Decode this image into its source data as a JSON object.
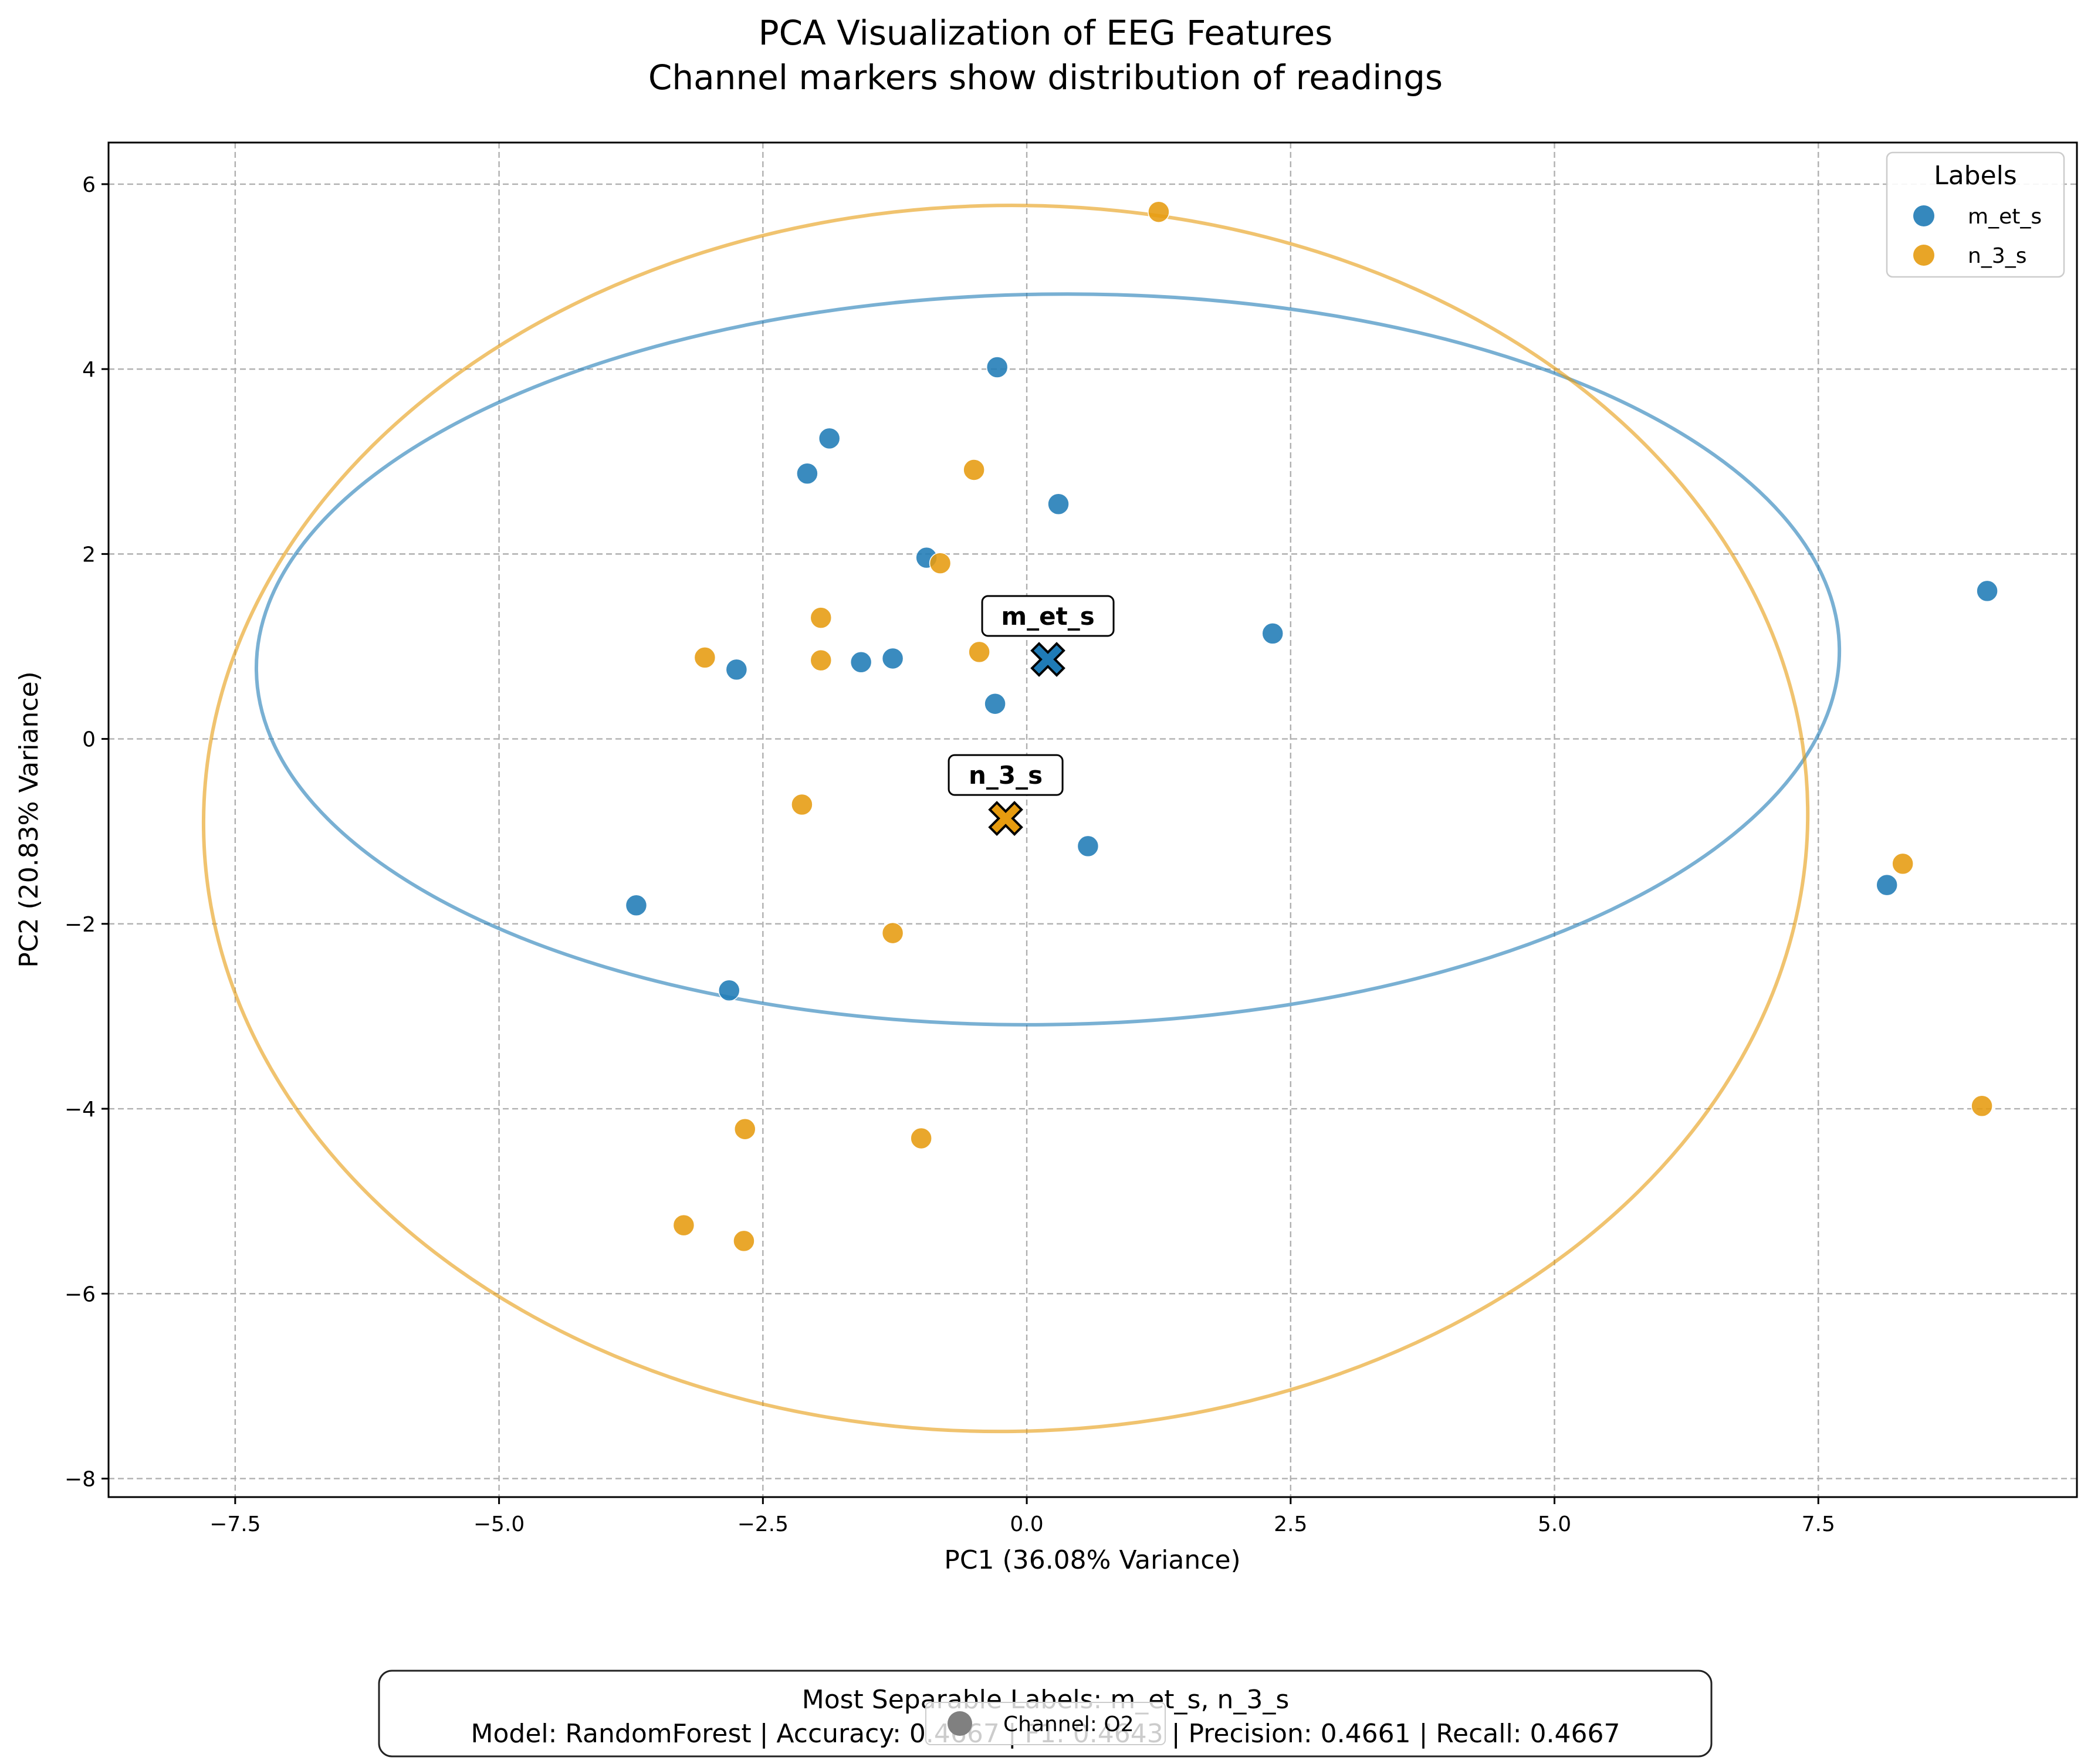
{
  "chart_data": {
    "type": "scatter",
    "title": "PCA Visualization of EEG Features",
    "subtitle": "Channel markers show distribution of readings",
    "xlabel": "PC1 (36.08% Variance)",
    "ylabel": "PC2 (20.83% Variance)",
    "xlim": [
      -8.7,
      9.95
    ],
    "ylim": [
      -8.2,
      6.45
    ],
    "xticks": [
      -7.5,
      -5.0,
      -2.5,
      0.0,
      2.5,
      5.0,
      7.5
    ],
    "xtick_labels": [
      "−7.5",
      "−5.0",
      "−2.5",
      "0.0",
      "2.5",
      "5.0",
      "7.5"
    ],
    "yticks": [
      -8,
      -6,
      -4,
      -2,
      0,
      2,
      4,
      6
    ],
    "ytick_labels": [
      "−8",
      "−6",
      "−4",
      "−2",
      "0",
      "2",
      "4",
      "6"
    ],
    "grid": true,
    "legend": {
      "title": "Labels",
      "placement": "top-right"
    },
    "series": [
      {
        "name": "m_et_s",
        "color": "#1f7bb6",
        "points": [
          [
            9.1,
            1.6
          ],
          [
            8.15,
            -1.58
          ],
          [
            2.33,
            1.14
          ],
          [
            0.3,
            2.54
          ],
          [
            0.58,
            -1.16
          ],
          [
            -0.28,
            4.02
          ],
          [
            -0.3,
            0.38
          ],
          [
            -0.95,
            1.96
          ],
          [
            -1.27,
            0.87
          ],
          [
            -1.57,
            0.83
          ],
          [
            -1.87,
            3.25
          ],
          [
            -2.08,
            2.87
          ],
          [
            -2.75,
            0.75
          ],
          [
            -2.82,
            -2.72
          ],
          [
            -3.7,
            -1.8
          ]
        ],
        "centroid": [
          0.2,
          0.86
        ],
        "ellipse": {
          "cx": 0.2,
          "cy": 0.86,
          "rx": 7.5,
          "ry": 3.95,
          "angle_deg": -0.8
        }
      },
      {
        "name": "n_3_s",
        "color": "#e69b0f",
        "points": [
          [
            1.25,
            5.7
          ],
          [
            -0.5,
            2.91
          ],
          [
            -0.82,
            1.9
          ],
          [
            -0.45,
            0.94
          ],
          [
            -1.95,
            1.31
          ],
          [
            -1.95,
            0.85
          ],
          [
            -3.05,
            0.88
          ],
          [
            -2.13,
            -0.71
          ],
          [
            -1.27,
            -2.1
          ],
          [
            -1.0,
            -4.32
          ],
          [
            -2.67,
            -4.22
          ],
          [
            -3.25,
            -5.26
          ],
          [
            -2.68,
            -5.43
          ],
          [
            8.3,
            -1.35
          ],
          [
            9.05,
            -3.97
          ]
        ],
        "centroid": [
          -0.2,
          -0.86
        ],
        "ellipse": {
          "cx": -0.2,
          "cy": -0.86,
          "rx": 7.6,
          "ry": 6.63,
          "angle_deg": -0.8
        }
      }
    ],
    "info_box": {
      "line1": "Most Separable Labels: m_et_s, n_3_s",
      "line2": "Model: RandomForest | Accuracy: 0.4667 | F1: 0.4643 | Precision: 0.4661 | Recall: 0.4667"
    },
    "channel_legend": {
      "label": "Channel: O2",
      "color": "#808080"
    }
  }
}
